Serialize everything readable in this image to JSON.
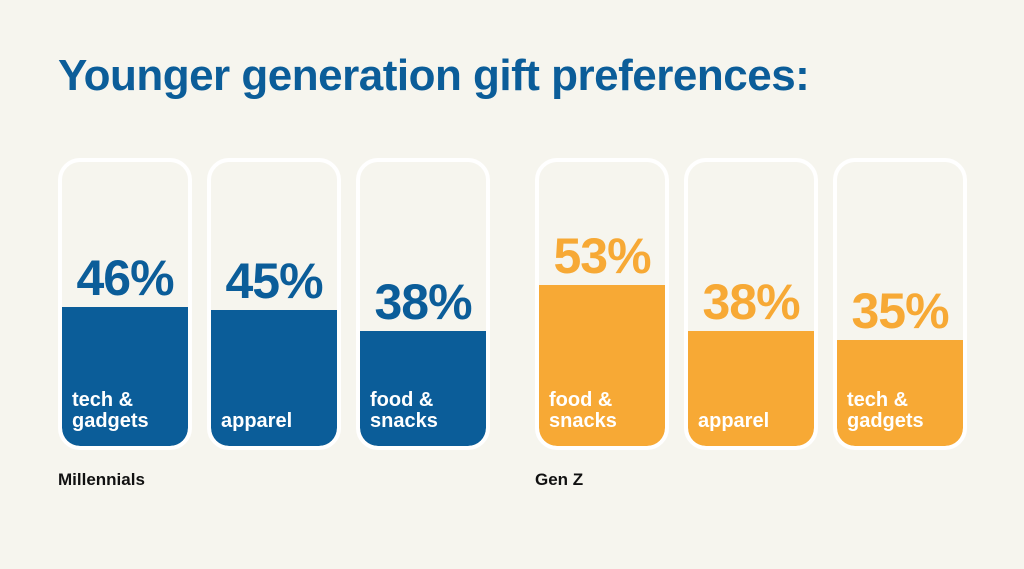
{
  "title": "Younger generation gift preferences:",
  "colors": {
    "background": "#f6f5ee",
    "title": "#0b5d99",
    "millennials": "#0b5d99",
    "genz": "#f7a935",
    "card_border": "#ffffff"
  },
  "chart_data": [
    {
      "type": "bar",
      "group": "Millennials",
      "unit": "%",
      "ylim": [
        0,
        100
      ],
      "categories": [
        "tech & gadgets",
        "apparel",
        "food & snacks"
      ],
      "category_lines": [
        "tech &\ngadgets",
        "apparel",
        "food &\nsnacks"
      ],
      "values": [
        46,
        45,
        38
      ],
      "labels": [
        "46%",
        "45%",
        "38%"
      ],
      "color": "#0b5d99"
    },
    {
      "type": "bar",
      "group": "Gen Z",
      "unit": "%",
      "ylim": [
        0,
        100
      ],
      "categories": [
        "food & snacks",
        "apparel",
        "tech & gadgets"
      ],
      "category_lines": [
        "food &\nsnacks",
        "apparel",
        "tech &\ngadgets"
      ],
      "values": [
        53,
        38,
        35
      ],
      "labels": [
        "53%",
        "38%",
        "35%"
      ],
      "color": "#f7a935"
    }
  ]
}
